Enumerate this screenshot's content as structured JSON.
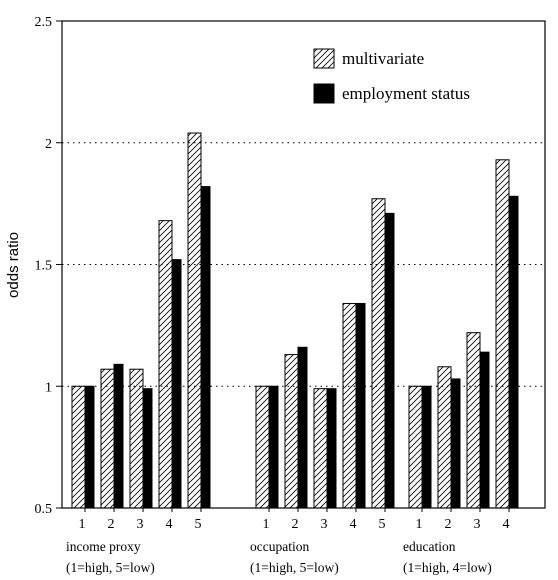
{
  "chart_data": {
    "type": "bar",
    "ylabel": "odds ratio",
    "ylim": [
      0.5,
      2.5
    ],
    "yticks": [
      "0.5",
      "1",
      "1.5",
      "2",
      "2.5"
    ],
    "grid": "dotted horizontal at 1, 1.5, 2",
    "legend_placement": "top-right",
    "series": [
      {
        "name": "multivariate",
        "pattern": "hatched",
        "color": "#000000"
      },
      {
        "name": "employment status",
        "pattern": "solid",
        "color": "#000000"
      }
    ],
    "groups": [
      {
        "label_line1": "income proxy",
        "label_line2": "(1=high, 5=low)",
        "categories": [
          "1",
          "2",
          "3",
          "4",
          "5"
        ],
        "multivariate": [
          1.0,
          1.07,
          1.07,
          1.68,
          2.04
        ],
        "employment_status": [
          1.0,
          1.09,
          0.99,
          1.52,
          1.82
        ]
      },
      {
        "label_line1": "occupation",
        "label_line2": "(1=high, 5=low)",
        "categories": [
          "1",
          "2",
          "3",
          "4",
          "5"
        ],
        "multivariate": [
          1.0,
          1.13,
          0.99,
          1.34,
          1.77
        ],
        "employment_status": [
          1.0,
          1.16,
          0.99,
          1.34,
          1.71
        ]
      },
      {
        "label_line1": "education",
        "label_line2": "(1=high, 4=low)",
        "categories": [
          "1",
          "2",
          "3",
          "4"
        ],
        "multivariate": [
          1.0,
          1.08,
          1.22,
          1.93
        ],
        "employment_status": [
          1.0,
          1.03,
          1.14,
          1.78
        ]
      }
    ]
  }
}
